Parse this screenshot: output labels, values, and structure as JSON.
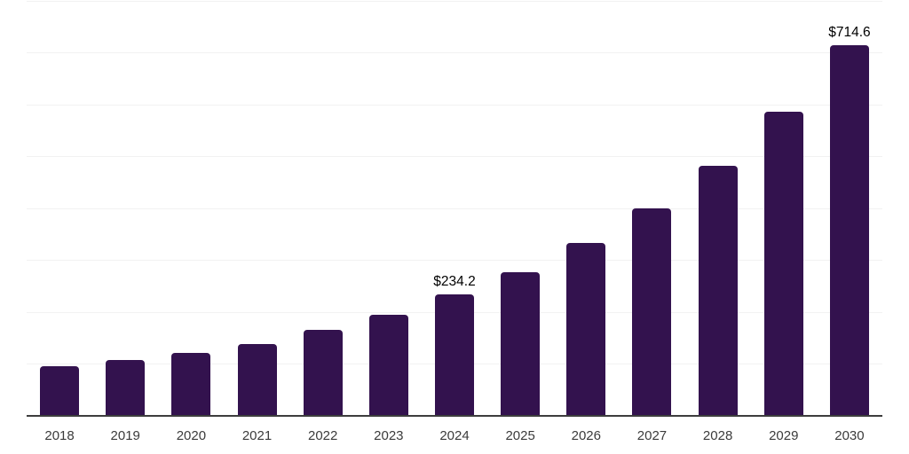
{
  "chart_data": {
    "type": "bar",
    "title": "",
    "xlabel": "",
    "ylabel": "",
    "categories": [
      "2018",
      "2019",
      "2020",
      "2021",
      "2022",
      "2023",
      "2024",
      "2025",
      "2026",
      "2027",
      "2028",
      "2029",
      "2030"
    ],
    "values": [
      95.2,
      108.2,
      121.9,
      139.0,
      166.3,
      194.9,
      234.2,
      277.4,
      333.3,
      400.0,
      482.6,
      586.4,
      714.6
    ],
    "data_labels": [
      {
        "category": "2024",
        "text": "$234.2"
      },
      {
        "category": "2030",
        "text": "$714.6"
      }
    ],
    "ylim": [
      0,
      800
    ],
    "grid": true,
    "grid_step": 100,
    "legend": "none",
    "y_axis_labels_visible": false,
    "colors": {
      "bar": "#33124E",
      "gridline": "#F2F2F2",
      "axis_line": "#3D3D3D",
      "data_label_text": "#000000",
      "tick_label_text": "#3B3B3B",
      "background": "#FFFFFF"
    }
  }
}
